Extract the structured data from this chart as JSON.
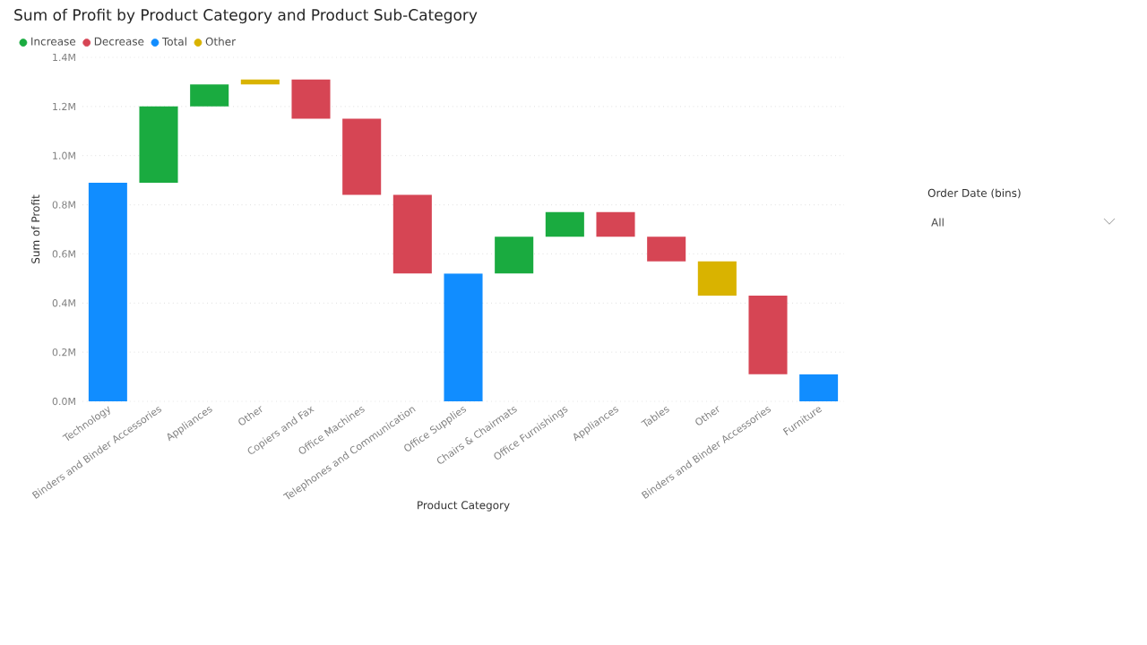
{
  "chart_data": {
    "type": "bar",
    "title": "Sum of Profit by Product Category and Product Sub-Category",
    "xlabel": "Product Category",
    "ylabel": "Sum of Profit",
    "categories": [
      "Technology",
      "Binders and Binder Accessories",
      "Appliances",
      "Other",
      "Copiers and Fax",
      "Office Machines",
      "Telephones and Communication",
      "Office Supplies",
      "Chairs & Chairmats",
      "Office Furnishings",
      "Appliances",
      "Tables",
      "Other",
      "Binders and Binder Accessories",
      "Furniture"
    ],
    "series": [
      {
        "name": "Increase",
        "color": "#1aab40",
        "values": [
          null,
          0.31,
          0.09,
          null,
          null,
          null,
          null,
          null,
          0.15,
          0.1,
          null,
          null,
          null,
          null,
          null
        ],
        "base": [
          null,
          0.89,
          1.2,
          null,
          null,
          null,
          null,
          null,
          0.52,
          0.67,
          null,
          null,
          null,
          null,
          null
        ]
      },
      {
        "name": "Decrease",
        "color": "#d64554",
        "values": [
          null,
          null,
          null,
          null,
          -0.16,
          -0.31,
          -0.32,
          null,
          null,
          null,
          -0.1,
          -0.1,
          null,
          -0.32,
          null
        ],
        "base": [
          null,
          null,
          null,
          null,
          1.31,
          1.15,
          0.84,
          null,
          null,
          null,
          0.77,
          0.67,
          null,
          0.43,
          null
        ]
      },
      {
        "name": "Total",
        "color": "#118dff",
        "values": [
          0.89,
          null,
          null,
          null,
          null,
          null,
          null,
          0.52,
          null,
          null,
          null,
          null,
          null,
          null,
          0.11
        ],
        "base": [
          0,
          null,
          null,
          null,
          null,
          null,
          null,
          0,
          null,
          null,
          null,
          null,
          null,
          null,
          0
        ]
      },
      {
        "name": "Other",
        "color": "#d9b300",
        "values": [
          null,
          null,
          null,
          0.02,
          null,
          null,
          null,
          null,
          null,
          null,
          null,
          null,
          -0.14,
          null,
          null
        ],
        "base": [
          null,
          null,
          null,
          1.29,
          null,
          null,
          null,
          null,
          null,
          null,
          null,
          null,
          0.57,
          null,
          null
        ]
      }
    ],
    "ylim": [
      0,
      1.4
    ],
    "yticks": [
      {
        "value": 0,
        "label": "0.0M"
      },
      {
        "value": 0.2,
        "label": "0.2M"
      },
      {
        "value": 0.4,
        "label": "0.4M"
      },
      {
        "value": 0.6,
        "label": "0.6M"
      },
      {
        "value": 0.8,
        "label": "0.8M"
      },
      {
        "value": 1.0,
        "label": "1.0M"
      },
      {
        "value": 1.2,
        "label": "1.2M"
      },
      {
        "value": 1.4,
        "label": "1.4M"
      }
    ],
    "grid": "y",
    "legend": "top left",
    "annotations": [
      "Order Date (bins)",
      "All"
    ]
  }
}
